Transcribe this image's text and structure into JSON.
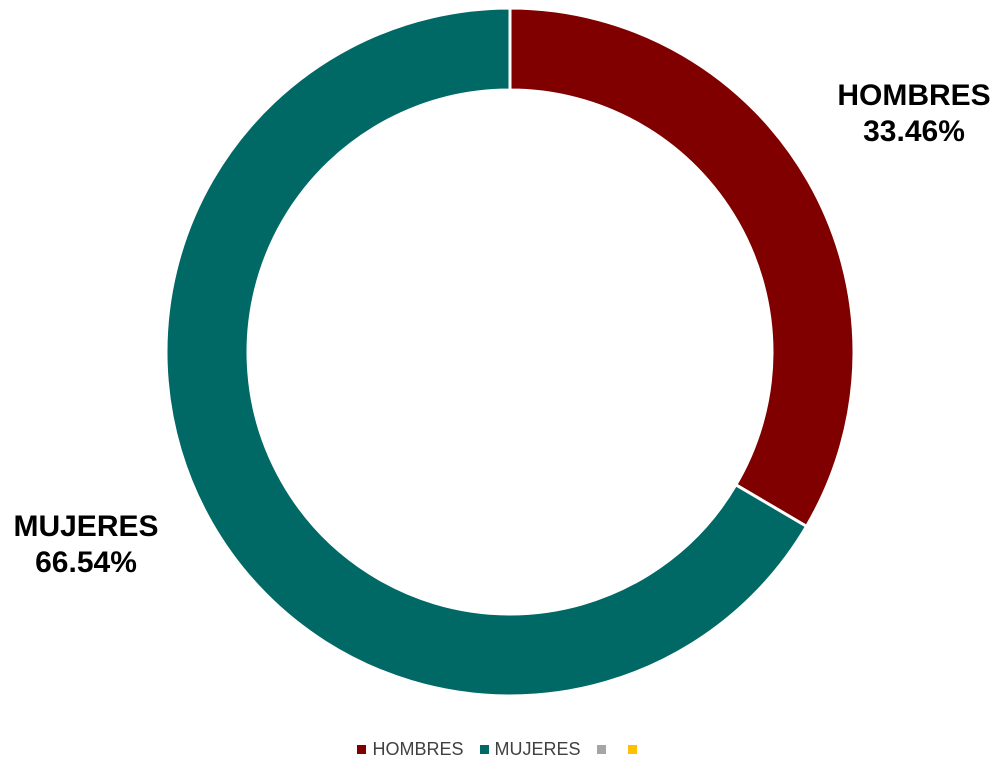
{
  "chart_data": {
    "type": "pie",
    "variant": "donut",
    "categories": [
      "HOMBRES",
      "MUJERES",
      "",
      ""
    ],
    "values": [
      33.46,
      66.54,
      0,
      0
    ],
    "colors": [
      "#800000",
      "#006865",
      "#A5A5A5",
      "#FFC000"
    ],
    "data_labels": [
      {
        "name": "HOMBRES",
        "value": "33.46%"
      },
      {
        "name": "MUJERES",
        "value": "66.54%"
      }
    ],
    "legend_position": "bottom",
    "title": ""
  }
}
